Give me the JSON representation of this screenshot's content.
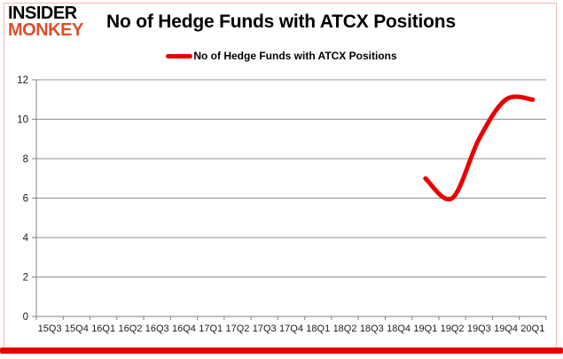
{
  "branding": {
    "logo_top": "INSIDER",
    "logo_bottom": "MONKEY"
  },
  "header": {
    "title": "No of Hedge Funds with ATCX Positions"
  },
  "legend": {
    "label": "No of Hedge Funds with ATCX Positions"
  },
  "chart_data": {
    "type": "line",
    "title": "No of Hedge Funds with ATCX Positions",
    "categories": [
      "15Q3",
      "15Q4",
      "16Q1",
      "16Q2",
      "16Q3",
      "16Q4",
      "17Q1",
      "17Q2",
      "17Q3",
      "17Q4",
      "18Q1",
      "18Q2",
      "18Q3",
      "18Q4",
      "19Q1",
      "19Q2",
      "19Q3",
      "19Q4",
      "20Q1"
    ],
    "series": [
      {
        "name": "No of Hedge Funds with ATCX Positions",
        "color": "#e80000",
        "values": [
          null,
          null,
          null,
          null,
          null,
          null,
          null,
          null,
          null,
          null,
          null,
          null,
          null,
          null,
          7,
          6,
          9,
          11,
          11
        ]
      }
    ],
    "xlabel": "",
    "ylabel": "",
    "ylim": [
      0,
      12
    ],
    "ytick_step": 2,
    "grid": true,
    "grid_orientation": "horizontal",
    "legend_position": "top-center",
    "line_smoothing": true
  },
  "colors": {
    "accent_red": "#e80000",
    "logo_monkey": "#d8502e",
    "gridline": "#909090",
    "axis_line": "#808080",
    "axis_text": "#1a1a1a",
    "border_pink": "#f0b9b9"
  }
}
